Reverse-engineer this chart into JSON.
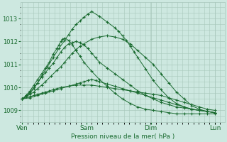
{
  "title": "Pression niveau de la mer( hPa )",
  "bg_color": "#cde8e0",
  "plot_bg_color": "#cde8e0",
  "grid_color": "#a8c8bc",
  "line_color": "#1a6b30",
  "ylim": [
    1008.5,
    1013.7
  ],
  "yticks": [
    1009,
    1010,
    1011,
    1012,
    1013
  ],
  "x_labels": [
    "Ven",
    "Sam",
    "Dim",
    "Lun"
  ],
  "x_ticks": [
    0,
    0.333,
    0.667,
    1.0
  ],
  "series": [
    {
      "x": [
        0.0,
        0.04,
        0.06,
        0.08,
        0.1,
        0.12,
        0.14,
        0.16,
        0.18,
        0.2,
        0.24,
        0.28,
        0.32,
        0.36,
        0.4,
        0.44,
        0.48,
        0.52,
        0.56,
        0.6,
        0.64,
        0.68,
        0.72,
        0.76,
        0.8,
        0.84,
        0.88,
        0.92,
        0.96,
        1.0
      ],
      "y": [
        1009.5,
        1009.6,
        1009.65,
        1009.7,
        1009.75,
        1009.8,
        1009.85,
        1009.9,
        1009.95,
        1010.0,
        1010.05,
        1010.1,
        1010.1,
        1010.1,
        1010.05,
        1010.0,
        1009.95,
        1009.9,
        1009.85,
        1009.8,
        1009.75,
        1009.7,
        1009.65,
        1009.55,
        1009.45,
        1009.35,
        1009.25,
        1009.15,
        1009.05,
        1009.0
      ]
    },
    {
      "x": [
        0.0,
        0.04,
        0.08,
        0.12,
        0.16,
        0.2,
        0.24,
        0.28,
        0.3,
        0.32,
        0.34,
        0.36,
        0.38,
        0.4,
        0.44,
        0.48,
        0.52,
        0.56,
        0.6,
        0.64,
        0.68,
        0.72,
        0.76,
        0.8,
        0.84,
        0.88,
        0.92,
        0.96,
        1.0
      ],
      "y": [
        1009.5,
        1009.55,
        1009.65,
        1009.75,
        1009.85,
        1009.95,
        1010.05,
        1010.15,
        1010.2,
        1010.25,
        1010.3,
        1010.35,
        1010.3,
        1010.25,
        1010.15,
        1010.05,
        1009.95,
        1009.85,
        1009.75,
        1009.65,
        1009.55,
        1009.45,
        1009.35,
        1009.25,
        1009.15,
        1009.05,
        1009.0,
        1008.95,
        1008.9
      ]
    },
    {
      "x": [
        0.0,
        0.02,
        0.04,
        0.06,
        0.08,
        0.1,
        0.12,
        0.15,
        0.18,
        0.2,
        0.22,
        0.24,
        0.26,
        0.28,
        0.3,
        0.32,
        0.36,
        0.4,
        0.44,
        0.48,
        0.52,
        0.56,
        0.6,
        0.64,
        0.68,
        0.72,
        0.76,
        0.8,
        0.84,
        0.88,
        0.92,
        0.96,
        1.0
      ],
      "y": [
        1009.5,
        1009.6,
        1009.7,
        1009.8,
        1009.95,
        1010.1,
        1010.25,
        1010.5,
        1010.75,
        1010.9,
        1011.1,
        1011.3,
        1011.5,
        1011.65,
        1011.8,
        1011.9,
        1012.1,
        1012.2,
        1012.25,
        1012.2,
        1012.1,
        1011.9,
        1011.6,
        1011.3,
        1011.0,
        1010.6,
        1010.2,
        1009.8,
        1009.5,
        1009.2,
        1009.05,
        1008.95,
        1008.9
      ]
    },
    {
      "x": [
        0.0,
        0.02,
        0.04,
        0.06,
        0.08,
        0.1,
        0.13,
        0.16,
        0.19,
        0.22,
        0.24,
        0.26,
        0.28,
        0.3,
        0.32,
        0.34,
        0.36,
        0.4,
        0.44,
        0.48,
        0.5,
        0.52,
        0.54,
        0.56,
        0.58,
        0.6,
        0.64,
        0.68,
        0.72,
        0.76,
        0.8,
        0.84,
        0.88,
        0.92,
        0.96,
        1.0
      ],
      "y": [
        1009.5,
        1009.65,
        1009.8,
        1010.0,
        1010.2,
        1010.5,
        1010.9,
        1011.3,
        1011.7,
        1012.05,
        1012.3,
        1012.55,
        1012.75,
        1012.9,
        1013.05,
        1013.2,
        1013.3,
        1013.1,
        1012.85,
        1012.6,
        1012.45,
        1012.25,
        1012.05,
        1011.8,
        1011.55,
        1011.3,
        1010.8,
        1010.3,
        1009.9,
        1009.55,
        1009.3,
        1009.15,
        1009.05,
        1009.0,
        1008.95,
        1008.9
      ]
    },
    {
      "x": [
        0.0,
        0.02,
        0.04,
        0.06,
        0.08,
        0.1,
        0.12,
        0.14,
        0.16,
        0.18,
        0.2,
        0.22,
        0.24,
        0.26,
        0.28,
        0.3,
        0.32,
        0.34,
        0.36,
        0.38,
        0.4,
        0.44,
        0.48,
        0.52,
        0.56,
        0.6,
        0.64,
        0.68,
        0.72,
        0.76,
        0.8,
        0.84,
        0.88,
        0.92,
        0.96,
        1.0
      ],
      "y": [
        1009.5,
        1009.6,
        1009.75,
        1009.95,
        1010.2,
        1010.45,
        1010.65,
        1010.85,
        1011.05,
        1011.3,
        1011.55,
        1011.75,
        1011.9,
        1011.95,
        1012.0,
        1011.95,
        1011.85,
        1011.7,
        1011.5,
        1011.3,
        1011.1,
        1010.85,
        1010.6,
        1010.35,
        1010.1,
        1009.85,
        1009.65,
        1009.5,
        1009.35,
        1009.25,
        1009.15,
        1009.1,
        1009.05,
        1009.0,
        1008.95,
        1008.9
      ]
    },
    {
      "x": [
        0.0,
        0.02,
        0.04,
        0.06,
        0.08,
        0.1,
        0.12,
        0.14,
        0.16,
        0.18,
        0.19,
        0.2,
        0.21,
        0.22,
        0.24,
        0.26,
        0.28,
        0.3,
        0.32,
        0.36,
        0.4,
        0.44,
        0.48,
        0.52,
        0.56,
        0.6,
        0.64,
        0.68,
        0.72,
        0.76,
        0.8,
        0.84,
        0.88,
        0.92,
        0.96,
        1.0
      ],
      "y": [
        1009.5,
        1009.65,
        1009.85,
        1010.1,
        1010.35,
        1010.6,
        1010.85,
        1011.1,
        1011.45,
        1011.7,
        1011.85,
        1012.0,
        1012.1,
        1012.15,
        1012.05,
        1011.85,
        1011.6,
        1011.35,
        1011.1,
        1010.7,
        1010.35,
        1010.05,
        1009.75,
        1009.5,
        1009.3,
        1009.15,
        1009.05,
        1009.0,
        1008.95,
        1008.9,
        1008.85,
        1008.85,
        1008.85,
        1008.85,
        1008.85,
        1008.85
      ]
    }
  ]
}
